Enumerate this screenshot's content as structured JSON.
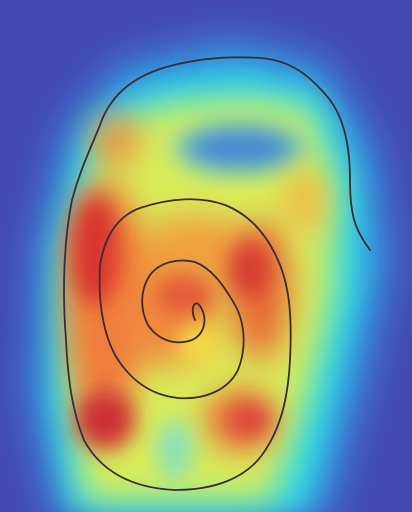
{
  "image": {
    "kind": "heatmap-overlay",
    "subject": "hand-drawn-spiral",
    "colormap": "jet",
    "colors": {
      "background": "#4549b4",
      "low": "#3a4fd0",
      "mid_low": "#29d2e6",
      "mid": "#c9ea5e",
      "mid_high": "#f6d23a",
      "high": "#f07a3a",
      "peak": "#d9352f",
      "stroke": "#3a2c34"
    }
  }
}
